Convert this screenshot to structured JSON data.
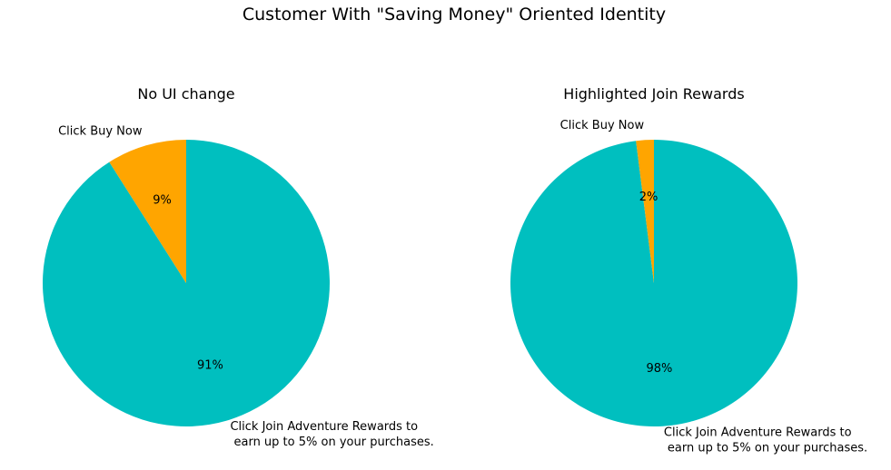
{
  "figure_title": "Customer With \"Saving Money\" Oriented Identity",
  "chart_data": [
    {
      "type": "pie",
      "title": "No UI change",
      "start_angle_deg": 90,
      "direction": "counterclockwise",
      "slices": [
        {
          "label": "Click Buy Now",
          "label_lines": [
            "Click Buy Now"
          ],
          "value": 9,
          "pct_label": "9%",
          "color": "#FFA500"
        },
        {
          "label": "Click Join Adventure Rewards to earn up to 5% on your purchases.",
          "label_lines": [
            "Click Join Adventure Rewards to",
            "earn up to 5% on your purchases."
          ],
          "value": 91,
          "pct_label": "91%",
          "color": "#00BFBF"
        }
      ]
    },
    {
      "type": "pie",
      "title": "Highlighted Join Rewards",
      "start_angle_deg": 90,
      "direction": "counterclockwise",
      "slices": [
        {
          "label": "Click Buy Now",
          "label_lines": [
            "Click Buy Now"
          ],
          "value": 2,
          "pct_label": "2%",
          "color": "#FFA500"
        },
        {
          "label": "Click Join Adventure Rewards to earn up to 5% on your purchases.",
          "label_lines": [
            "Click Join Adventure Rewards to",
            "earn up to 5% on your purchases."
          ],
          "value": 98,
          "pct_label": "98%",
          "color": "#00BFBF"
        }
      ]
    }
  ]
}
